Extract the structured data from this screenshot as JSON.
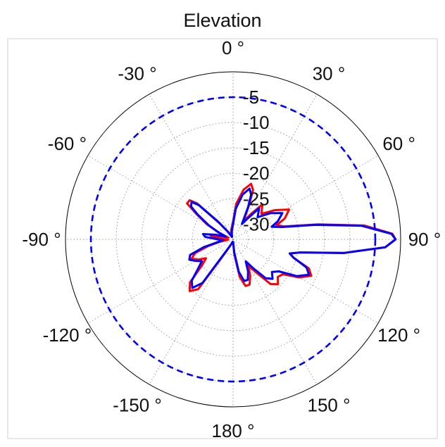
{
  "chart_data": {
    "type": "polar-line",
    "title": "Elevation",
    "angle_unit": "degrees",
    "angle_zero": "top",
    "angle_direction": "clockwise",
    "angle_ticks": [
      {
        "angle": 0,
        "label": "0 °"
      },
      {
        "angle": 30,
        "label": "30 °"
      },
      {
        "angle": 60,
        "label": "60 °"
      },
      {
        "angle": 90,
        "label": "90 °"
      },
      {
        "angle": 120,
        "label": "120 °"
      },
      {
        "angle": 150,
        "label": "150 °"
      },
      {
        "angle": 180,
        "label": "180 °"
      },
      {
        "angle": -150,
        "label": "-150 °"
      },
      {
        "angle": -120,
        "label": "-120 °"
      },
      {
        "angle": -90,
        "label": "-90 °"
      },
      {
        "angle": -60,
        "label": "-60 °"
      },
      {
        "angle": -30,
        "label": "-30 °"
      }
    ],
    "radial_ticks": [
      {
        "value": -5,
        "label": "-5"
      },
      {
        "value": -10,
        "label": "-10"
      },
      {
        "value": -15,
        "label": "-15"
      },
      {
        "value": -20,
        "label": "-20"
      },
      {
        "value": -25,
        "label": "-25"
      },
      {
        "value": -30,
        "label": "-30"
      }
    ],
    "rlim": [
      -33,
      0
    ],
    "grid": true,
    "legend": "none",
    "series": [
      {
        "color": "#ff0000",
        "style": "solid",
        "points": [
          [
            -180,
            -32.5
          ],
          [
            -170,
            -32.5
          ],
          [
            -160,
            -32
          ],
          [
            -150,
            -30
          ],
          [
            -145,
            -21
          ],
          [
            -140,
            -19.7
          ],
          [
            -135,
            -21
          ],
          [
            -130,
            -25
          ],
          [
            -125,
            -26.5
          ],
          [
            -120,
            -25
          ],
          [
            -115,
            -24
          ],
          [
            -110,
            -25
          ],
          [
            -105,
            -28
          ],
          [
            -100,
            -30.5
          ],
          [
            -95,
            -32
          ],
          [
            -90,
            -31.5
          ],
          [
            -85,
            -29
          ],
          [
            -80,
            -28.5
          ],
          [
            -75,
            -31
          ],
          [
            -70,
            -32
          ],
          [
            -65,
            -30
          ],
          [
            -60,
            -27
          ],
          [
            -55,
            -24
          ],
          [
            -52,
            -21.5
          ],
          [
            -48,
            -21.5
          ],
          [
            -45,
            -23
          ],
          [
            -40,
            -29
          ],
          [
            -35,
            -31
          ],
          [
            -25,
            -32
          ],
          [
            -10,
            -31
          ],
          [
            0,
            -29.5
          ],
          [
            5,
            -26
          ],
          [
            12,
            -23
          ],
          [
            18,
            -21.5
          ],
          [
            22,
            -22.5
          ],
          [
            25,
            -25.5
          ],
          [
            30,
            -29
          ],
          [
            35,
            -27
          ],
          [
            40,
            -24
          ],
          [
            48,
            -25.5
          ],
          [
            55,
            -23
          ],
          [
            62,
            -20.5
          ],
          [
            68,
            -22
          ],
          [
            72,
            -24
          ],
          [
            76,
            -22.5
          ],
          [
            80,
            -16
          ],
          [
            84,
            -7
          ],
          [
            88,
            -1.6
          ],
          [
            90,
            -1
          ],
          [
            93,
            -3
          ],
          [
            97,
            -11
          ],
          [
            101,
            -19.5
          ],
          [
            104,
            -21.5
          ],
          [
            107,
            -20.5
          ],
          [
            111,
            -17
          ],
          [
            115,
            -16
          ],
          [
            120,
            -18
          ],
          [
            125,
            -21
          ],
          [
            130,
            -21.5
          ],
          [
            135,
            -20.5
          ],
          [
            140,
            -21.5
          ],
          [
            145,
            -25
          ],
          [
            150,
            -27
          ],
          [
            155,
            -25
          ],
          [
            160,
            -23.5
          ],
          [
            165,
            -23.5
          ],
          [
            170,
            -25.5
          ],
          [
            175,
            -30
          ],
          [
            180,
            -32.5
          ]
        ]
      },
      {
        "color": "#0000ff",
        "style": "solid",
        "points": [
          [
            -180,
            -32.5
          ],
          [
            -170,
            -32.5
          ],
          [
            -160,
            -32
          ],
          [
            -150,
            -30.5
          ],
          [
            -145,
            -22.5
          ],
          [
            -140,
            -20.5
          ],
          [
            -135,
            -21.5
          ],
          [
            -130,
            -24
          ],
          [
            -125,
            -25.5
          ],
          [
            -120,
            -24.5
          ],
          [
            -115,
            -23.5
          ],
          [
            -110,
            -24
          ],
          [
            -105,
            -27
          ],
          [
            -100,
            -30
          ],
          [
            -95,
            -31
          ],
          [
            -90,
            -30
          ],
          [
            -85,
            -27.5
          ],
          [
            -80,
            -27
          ],
          [
            -75,
            -29.5
          ],
          [
            -70,
            -31.5
          ],
          [
            -65,
            -30
          ],
          [
            -60,
            -27.5
          ],
          [
            -55,
            -24.5
          ],
          [
            -52,
            -22.5
          ],
          [
            -48,
            -22
          ],
          [
            -45,
            -23.5
          ],
          [
            -40,
            -28.5
          ],
          [
            -35,
            -31
          ],
          [
            -25,
            -32.5
          ],
          [
            -10,
            -31.5
          ],
          [
            0,
            -30
          ],
          [
            5,
            -27
          ],
          [
            12,
            -24
          ],
          [
            18,
            -22.5
          ],
          [
            22,
            -23.5
          ],
          [
            25,
            -26
          ],
          [
            30,
            -29.5
          ],
          [
            35,
            -28
          ],
          [
            40,
            -25
          ],
          [
            48,
            -26.5
          ],
          [
            55,
            -24
          ],
          [
            62,
            -22
          ],
          [
            68,
            -23.5
          ],
          [
            72,
            -25
          ],
          [
            76,
            -23
          ],
          [
            80,
            -16.5
          ],
          [
            84,
            -7.5
          ],
          [
            88,
            -1.8
          ],
          [
            90,
            -1
          ],
          [
            93,
            -3
          ],
          [
            97,
            -11
          ],
          [
            101,
            -19.5
          ],
          [
            104,
            -21.5
          ],
          [
            107,
            -20.5
          ],
          [
            111,
            -17.5
          ],
          [
            115,
            -16.5
          ],
          [
            120,
            -18.5
          ],
          [
            125,
            -22
          ],
          [
            130,
            -23
          ],
          [
            135,
            -22
          ],
          [
            140,
            -23
          ],
          [
            145,
            -26
          ],
          [
            150,
            -28
          ],
          [
            155,
            -26
          ],
          [
            160,
            -24.5
          ],
          [
            165,
            -24.5
          ],
          [
            170,
            -26.5
          ],
          [
            175,
            -30.5
          ],
          [
            180,
            -32.5
          ]
        ]
      },
      {
        "color": "#0000ff",
        "style": "dashed",
        "constant": -5
      }
    ]
  }
}
